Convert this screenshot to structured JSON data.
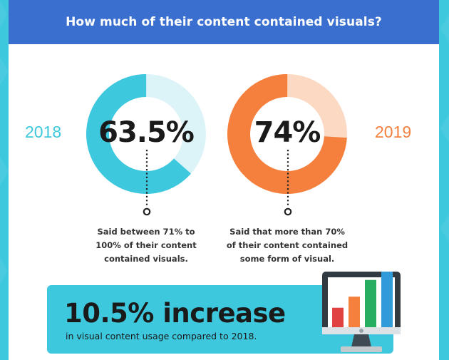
{
  "header": {
    "title": "How much of their content contained visuals?"
  },
  "colors": {
    "background": "#3dc8de",
    "header": "#3a6fd0",
    "cyan": "#3dc8de",
    "cyan_light": "#dcf3f8",
    "orange": "#f5803e",
    "orange_light": "#fbd9c3"
  },
  "chart_data": [
    {
      "type": "pie",
      "year_label": "2018",
      "value": 63.5,
      "value_label": "63.5%",
      "description_lines": [
        "Said between 71% to",
        "100% of their content",
        "contained visuals."
      ],
      "color": "#3dc8de",
      "remainder_color": "#dcf3f8"
    },
    {
      "type": "pie",
      "year_label": "2019",
      "value": 74,
      "value_label": "74%",
      "description_lines": [
        "Said that more than 70%",
        "of their content contained",
        "some form of visual."
      ],
      "color": "#f5803e",
      "remainder_color": "#fbd9c3"
    }
  ],
  "banner": {
    "headline": "10.5% increase",
    "subtext": "in visual content usage compared to 2018."
  },
  "monitor_icon": {
    "icon": "monitor-bar-chart-icon",
    "bars": [
      {
        "level": 0.35,
        "color": "#e04141"
      },
      {
        "level": 0.55,
        "color": "#f5803e"
      },
      {
        "level": 0.85,
        "color": "#27ae60"
      },
      {
        "level": 1.0,
        "color": "#2f9bd8"
      }
    ]
  }
}
